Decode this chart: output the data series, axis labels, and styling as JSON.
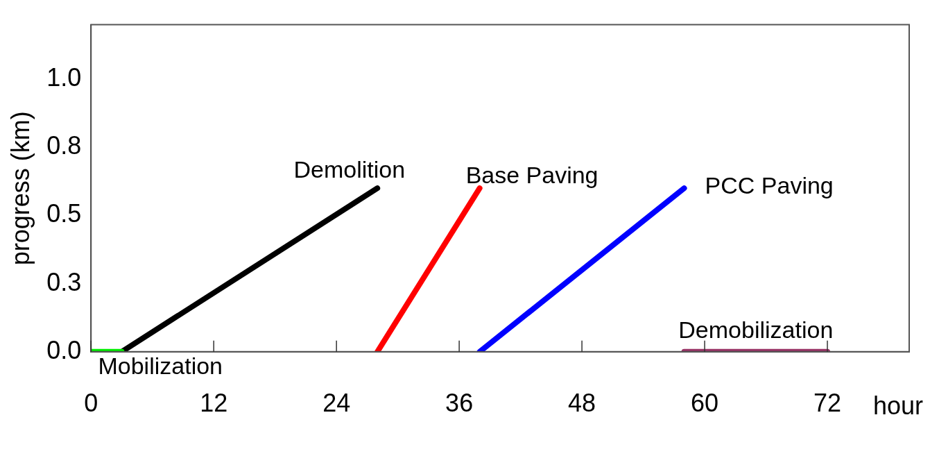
{
  "chart_data": {
    "type": "line",
    "xlabel": "hour",
    "ylabel": "progress (km)",
    "xlim": [
      0,
      80
    ],
    "xticks": [
      0,
      12,
      24,
      36,
      48,
      60,
      72
    ],
    "ylim": [
      0,
      1.2
    ],
    "yticks": [
      {
        "value": 0,
        "label": "0.0"
      },
      {
        "value": 0.25,
        "label": "0.3"
      },
      0.5,
      {
        "value": 0.75,
        "label": "0.8"
      },
      {
        "value": 1,
        "label": "1.0"
      }
    ],
    "grid": false,
    "legend": false,
    "marker": "none",
    "line_style": "solid",
    "series": [
      {
        "name": "Mobilization",
        "color": "#00ee00",
        "x": [
          0,
          3
        ],
        "values": [
          0,
          0
        ]
      },
      {
        "name": "Demolition",
        "color": "#000000",
        "x": [
          3,
          28
        ],
        "values": [
          0,
          0.6
        ]
      },
      {
        "name": "Base Paving",
        "color": "#ff0000",
        "x": [
          28,
          38
        ],
        "values": [
          0,
          0.6
        ]
      },
      {
        "name": "PCC Paving",
        "color": "#0000ff",
        "x": [
          38,
          58
        ],
        "values": [
          0,
          0.6
        ]
      },
      {
        "name": "Demobilization",
        "color": "#993366",
        "x": [
          58,
          72
        ],
        "values": [
          0,
          0
        ]
      }
    ]
  }
}
